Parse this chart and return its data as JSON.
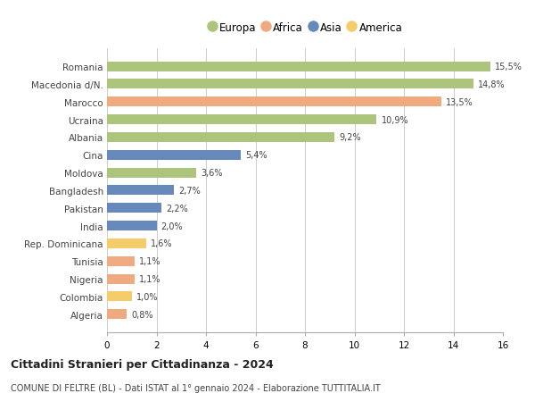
{
  "categories": [
    "Romania",
    "Macedonia d/N.",
    "Marocco",
    "Ucraina",
    "Albania",
    "Cina",
    "Moldova",
    "Bangladesh",
    "Pakistan",
    "India",
    "Rep. Dominicana",
    "Tunisia",
    "Nigeria",
    "Colombia",
    "Algeria"
  ],
  "values": [
    15.5,
    14.8,
    13.5,
    10.9,
    9.2,
    5.4,
    3.6,
    2.7,
    2.2,
    2.0,
    1.6,
    1.1,
    1.1,
    1.0,
    0.8
  ],
  "labels": [
    "15,5%",
    "14,8%",
    "13,5%",
    "10,9%",
    "9,2%",
    "5,4%",
    "3,6%",
    "2,7%",
    "2,2%",
    "2,0%",
    "1,6%",
    "1,1%",
    "1,1%",
    "1,0%",
    "0,8%"
  ],
  "continents": [
    "Europa",
    "Europa",
    "Africa",
    "Europa",
    "Europa",
    "Asia",
    "Europa",
    "Asia",
    "Asia",
    "Asia",
    "America",
    "Africa",
    "Africa",
    "America",
    "Africa"
  ],
  "colors": {
    "Europa": "#adc47d",
    "Africa": "#f0aa80",
    "Asia": "#6688bb",
    "America": "#f5cc6a"
  },
  "legend_order": [
    "Europa",
    "Africa",
    "Asia",
    "America"
  ],
  "xlim": [
    0,
    16
  ],
  "xticks": [
    0,
    2,
    4,
    6,
    8,
    10,
    12,
    14,
    16
  ],
  "title": "Cittadini Stranieri per Cittadinanza - 2024",
  "subtitle": "COMUNE DI FELTRE (BL) - Dati ISTAT al 1° gennaio 2024 - Elaborazione TUTTITALIA.IT",
  "background_color": "#ffffff",
  "grid_color": "#cccccc"
}
